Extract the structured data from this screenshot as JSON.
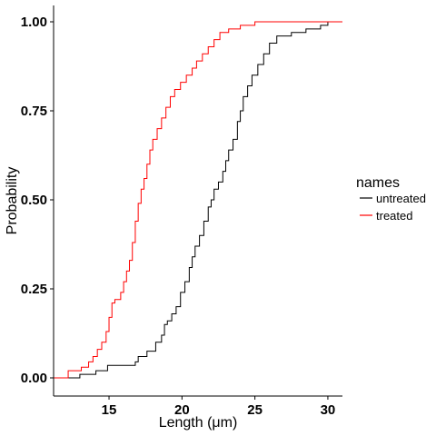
{
  "chart_data": {
    "type": "line",
    "subtype": "ecdf-step",
    "title": "",
    "xlabel": "Length (μm)",
    "ylabel": "Probability",
    "xlim": [
      11.2,
      31
    ],
    "ylim": [
      0,
      1
    ],
    "x_ticks": [
      15,
      20,
      25,
      30
    ],
    "y_ticks": [
      0.0,
      0.25,
      0.5,
      0.75,
      1.0
    ],
    "x_tick_labels": [
      "15",
      "20",
      "25",
      "30"
    ],
    "y_tick_labels": [
      "0.00",
      "0.25",
      "0.50",
      "0.75",
      "1.00"
    ],
    "grid": false,
    "legend": {
      "title": "names",
      "position": "right",
      "entries": [
        "untreated",
        "treated"
      ]
    },
    "series": [
      {
        "name": "untreated",
        "color": "#000000",
        "points": [
          [
            11.2,
            0.0
          ],
          [
            13.0,
            0.0
          ],
          [
            13.0,
            0.01
          ],
          [
            14.1,
            0.01
          ],
          [
            14.1,
            0.02
          ],
          [
            14.9,
            0.02
          ],
          [
            14.9,
            0.035
          ],
          [
            16.8,
            0.035
          ],
          [
            16.8,
            0.045
          ],
          [
            17.0,
            0.045
          ],
          [
            17.0,
            0.06
          ],
          [
            17.6,
            0.06
          ],
          [
            17.6,
            0.075
          ],
          [
            18.0,
            0.075
          ],
          [
            18.2,
            0.1
          ],
          [
            18.6,
            0.12
          ],
          [
            18.8,
            0.15
          ],
          [
            19.0,
            0.16
          ],
          [
            19.3,
            0.18
          ],
          [
            19.6,
            0.2
          ],
          [
            19.9,
            0.24
          ],
          [
            20.2,
            0.27
          ],
          [
            20.5,
            0.31
          ],
          [
            20.7,
            0.34
          ],
          [
            20.9,
            0.37
          ],
          [
            21.2,
            0.4
          ],
          [
            21.5,
            0.44
          ],
          [
            21.8,
            0.48
          ],
          [
            22.0,
            0.5
          ],
          [
            22.2,
            0.53
          ],
          [
            22.5,
            0.55
          ],
          [
            22.8,
            0.58
          ],
          [
            23.0,
            0.61
          ],
          [
            23.2,
            0.64
          ],
          [
            23.5,
            0.67
          ],
          [
            23.8,
            0.72
          ],
          [
            24.0,
            0.75
          ],
          [
            24.2,
            0.79
          ],
          [
            24.5,
            0.82
          ],
          [
            24.8,
            0.85
          ],
          [
            25.2,
            0.88
          ],
          [
            25.6,
            0.91
          ],
          [
            26.0,
            0.94
          ],
          [
            26.5,
            0.96
          ],
          [
            27.5,
            0.97
          ],
          [
            28.5,
            0.98
          ],
          [
            29.5,
            0.99
          ],
          [
            30.0,
            1.0
          ],
          [
            31.0,
            1.0
          ]
        ]
      },
      {
        "name": "treated",
        "color": "#ff0000",
        "points": [
          [
            11.2,
            0.0
          ],
          [
            12.2,
            0.0
          ],
          [
            12.2,
            0.02
          ],
          [
            13.1,
            0.02
          ],
          [
            13.1,
            0.03
          ],
          [
            13.6,
            0.03
          ],
          [
            13.6,
            0.045
          ],
          [
            13.9,
            0.06
          ],
          [
            14.2,
            0.08
          ],
          [
            14.5,
            0.1
          ],
          [
            14.8,
            0.13
          ],
          [
            15.0,
            0.17
          ],
          [
            15.2,
            0.21
          ],
          [
            15.4,
            0.22
          ],
          [
            15.8,
            0.24
          ],
          [
            16.0,
            0.27
          ],
          [
            16.2,
            0.3
          ],
          [
            16.4,
            0.33
          ],
          [
            16.6,
            0.38
          ],
          [
            16.8,
            0.44
          ],
          [
            17.0,
            0.49
          ],
          [
            17.2,
            0.53
          ],
          [
            17.4,
            0.56
          ],
          [
            17.6,
            0.6
          ],
          [
            17.8,
            0.64
          ],
          [
            18.0,
            0.67
          ],
          [
            18.3,
            0.7
          ],
          [
            18.6,
            0.73
          ],
          [
            18.9,
            0.76
          ],
          [
            19.2,
            0.79
          ],
          [
            19.5,
            0.81
          ],
          [
            19.9,
            0.83
          ],
          [
            20.3,
            0.85
          ],
          [
            20.7,
            0.87
          ],
          [
            21.0,
            0.89
          ],
          [
            21.4,
            0.91
          ],
          [
            21.8,
            0.93
          ],
          [
            22.2,
            0.95
          ],
          [
            22.6,
            0.97
          ],
          [
            23.2,
            0.98
          ],
          [
            24.0,
            0.99
          ],
          [
            25.0,
            1.0
          ],
          [
            31.0,
            1.0
          ]
        ]
      }
    ]
  }
}
